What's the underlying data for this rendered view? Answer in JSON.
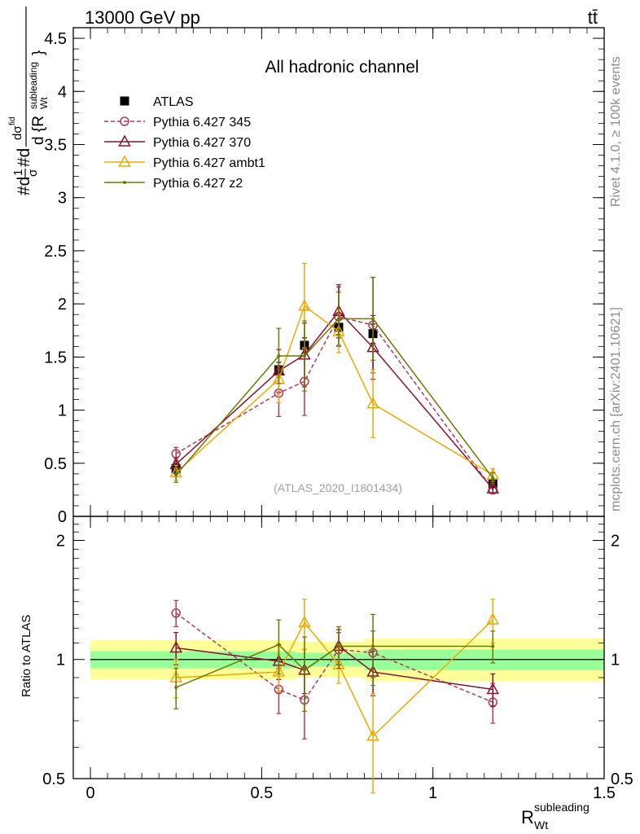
{
  "header": {
    "energy_label": "13000 GeV pp",
    "process_label": "tt̄"
  },
  "side_labels": {
    "rivet": "Rivet 4.1.0, ≥ 100k events",
    "mcplots": "mcplots.cern.ch [arXiv:2401.10621]"
  },
  "chart_data": [
    {
      "type": "line",
      "name": "main",
      "title": "All hadronic channel",
      "watermark": "(ATLAS_2020_I1801434)",
      "ylabel": "#d¹⁄σ#d dσᴳᵈ / d {R_Wt^subleading}",
      "xlim": [
        -0.05,
        1.5
      ],
      "ylim": [
        0,
        4.6
      ],
      "yticks": [
        "0.5",
        "1",
        "1.5",
        "2",
        "2.5",
        "3",
        "3.5",
        "4",
        "4.5"
      ],
      "ytick_values": [
        0.5,
        1,
        1.5,
        2,
        2.5,
        3,
        3.5,
        4,
        4.5
      ],
      "x": [
        0.25,
        0.55,
        0.625,
        0.725,
        0.825,
        1.175
      ],
      "series": [
        {
          "name": "ATLAS",
          "color": "#000000",
          "marker": "square",
          "line": "none",
          "values": [
            0.45,
            1.38,
            1.61,
            1.78,
            1.72,
            0.31
          ],
          "err": [
            0.05,
            0.07,
            0.07,
            0.07,
            0.09,
            0.04
          ]
        },
        {
          "name": "Pythia 6.427 345",
          "color": "#b03a5a",
          "marker": "circle-open",
          "line": "dashed",
          "values": [
            0.59,
            1.16,
            1.27,
            1.88,
            1.8,
            0.25
          ],
          "err": [
            0.06,
            0.22,
            0.32,
            0.28,
            0.45,
            0.04
          ]
        },
        {
          "name": "Pythia 6.427 370",
          "color": "#8b1030",
          "marker": "triangle-open",
          "line": "solid",
          "values": [
            0.49,
            1.37,
            1.52,
            1.93,
            1.59,
            0.26
          ],
          "err": [
            0.06,
            0.2,
            0.3,
            0.25,
            0.3,
            0.04
          ]
        },
        {
          "name": "Pythia 6.427 ambt1",
          "color": "#f0a800",
          "marker": "triangle-open",
          "line": "solid",
          "values": [
            0.41,
            1.29,
            1.98,
            1.74,
            1.06,
            0.39
          ],
          "err": [
            0.07,
            0.22,
            0.4,
            0.2,
            0.32,
            0.06
          ]
        },
        {
          "name": "Pythia 6.427 z2",
          "color": "#6b7a00",
          "marker": "dot",
          "line": "solid",
          "values": [
            0.39,
            1.51,
            1.51,
            1.86,
            1.86,
            0.36
          ],
          "err": [
            0.07,
            0.26,
            0.33,
            0.25,
            0.39,
            0.05
          ]
        }
      ]
    },
    {
      "type": "line",
      "name": "ratio",
      "ylabel": "Ratio to ATLAS",
      "xlabel": "R_Wt^subleading",
      "xlim": [
        -0.05,
        1.5
      ],
      "ylim": [
        0.5,
        2.3
      ],
      "log_y": true,
      "xticks": [
        "0",
        "0.5",
        "1",
        "1.5"
      ],
      "xtick_values": [
        0,
        0.5,
        1,
        1.5
      ],
      "yticks": [
        "0.5",
        "1",
        "2"
      ],
      "ytick_values": [
        0.5,
        1,
        2
      ],
      "x": [
        0.25,
        0.55,
        0.625,
        0.725,
        0.825,
        1.175
      ],
      "bands": {
        "inner_color": "#99ff99",
        "outer_color": "#ffff99",
        "bins": [
          {
            "x0": 0,
            "x1": 0.6,
            "inner": [
              0.95,
              1.05
            ],
            "outer": [
              0.89,
              1.12
            ]
          },
          {
            "x0": 0.6,
            "x1": 0.8,
            "inner": [
              0.96,
              1.04
            ],
            "outer": [
              0.9,
              1.11
            ]
          },
          {
            "x0": 0.8,
            "x1": 1.5,
            "inner": [
              0.94,
              1.06
            ],
            "outer": [
              0.88,
              1.13
            ]
          }
        ]
      },
      "series": [
        {
          "name": "Pythia 6.427 345",
          "color": "#b03a5a",
          "marker": "circle-open",
          "line": "dashed",
          "values": [
            1.31,
            0.84,
            0.79,
            1.06,
            1.04,
            0.78
          ],
          "err": [
            0.1,
            0.11,
            0.16,
            0.11,
            0.14,
            0.09
          ]
        },
        {
          "name": "Pythia 6.427 370",
          "color": "#8b1030",
          "marker": "triangle-open",
          "line": "solid",
          "values": [
            1.07,
            0.99,
            0.94,
            1.08,
            0.93,
            0.84
          ],
          "err": [
            0.1,
            0.1,
            0.12,
            0.11,
            0.12,
            0.08
          ]
        },
        {
          "name": "Pythia 6.427 ambt1",
          "color": "#f0a800",
          "marker": "triangle-open",
          "line": "solid",
          "values": [
            0.9,
            0.93,
            1.24,
            0.97,
            0.64,
            1.26
          ],
          "err": [
            0.1,
            0.1,
            0.18,
            0.1,
            0.18,
            0.16
          ]
        },
        {
          "name": "Pythia 6.427 z2",
          "color": "#6b7a00",
          "marker": "dot",
          "line": "solid",
          "values": [
            0.85,
            1.09,
            0.94,
            1.08,
            1.08,
            1.08
          ],
          "err": [
            0.1,
            0.17,
            0.2,
            0.13,
            0.22,
            0.1
          ]
        }
      ]
    }
  ]
}
